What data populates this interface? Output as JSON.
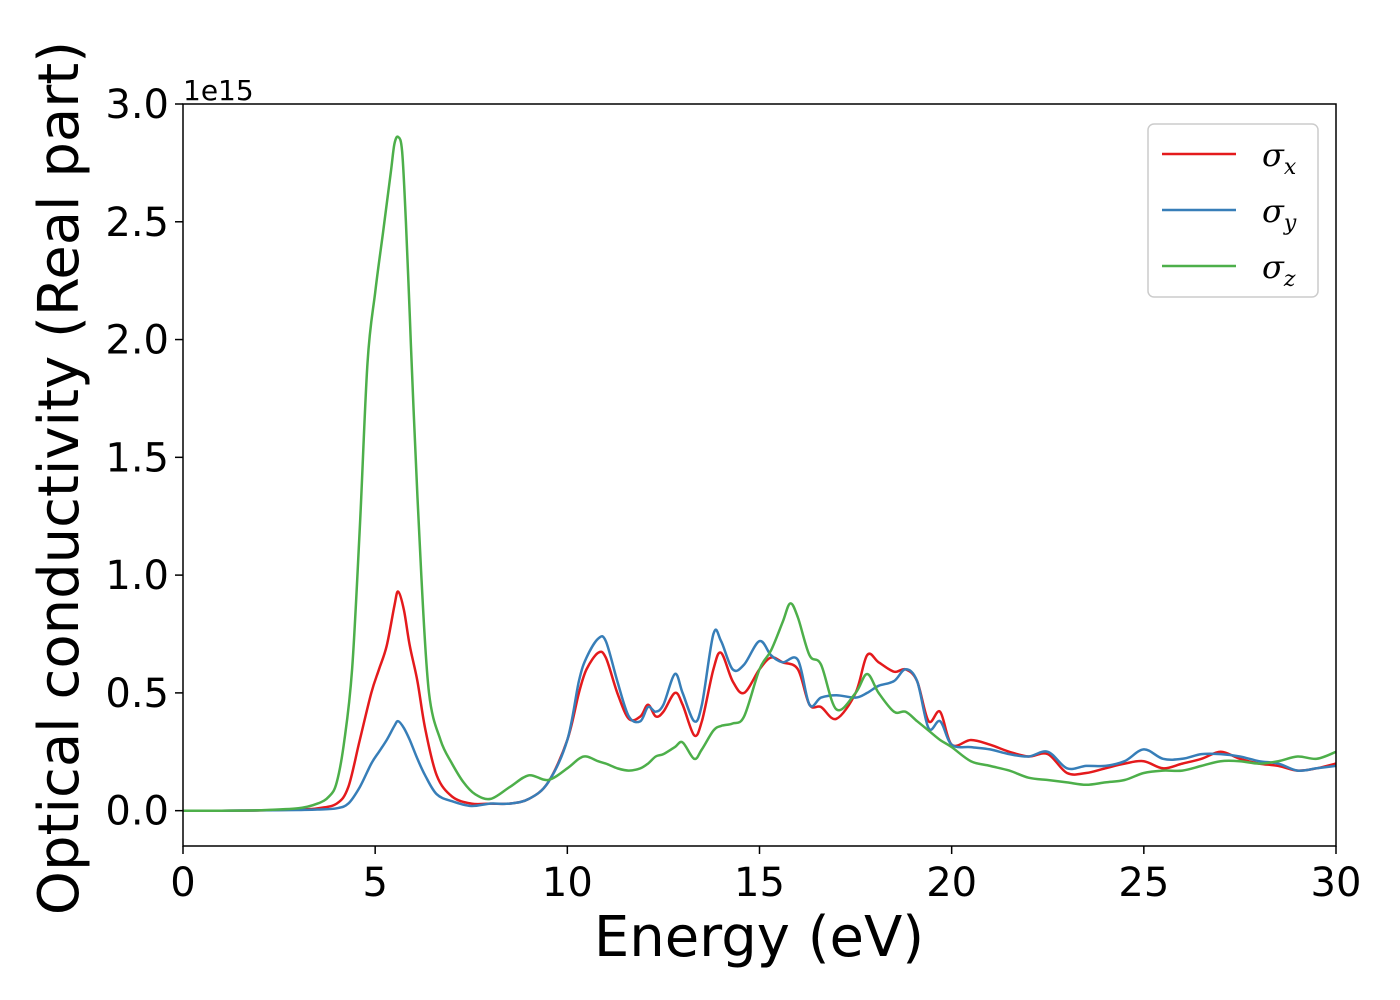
{
  "chart_data": {
    "type": "line",
    "xlabel": "Energy (eV)",
    "ylabel": "Optical conductivity (Real part)",
    "y_offset_text": "1e15",
    "xlim": [
      0,
      30
    ],
    "ylim": [
      -0.15,
      3.0
    ],
    "xticks": [
      0,
      5,
      10,
      15,
      20,
      25,
      30
    ],
    "xtick_labels": [
      "0",
      "5",
      "10",
      "15",
      "20",
      "25",
      "30"
    ],
    "yticks": [
      0.0,
      0.5,
      1.0,
      1.5,
      2.0,
      2.5,
      3.0
    ],
    "ytick_labels": [
      "0.0",
      "0.5",
      "1.0",
      "1.5",
      "2.0",
      "2.5",
      "3.0"
    ],
    "grid": false,
    "legend_position": "top-right",
    "series": [
      {
        "name": "σx",
        "symbol": "σ",
        "subscript": "x",
        "color": "#e41a1c",
        "x": [
          0,
          1,
          2,
          3,
          3.5,
          4,
          4.3,
          4.6,
          4.9,
          5.1,
          5.3,
          5.5,
          5.6,
          5.75,
          5.9,
          6.1,
          6.3,
          6.6,
          7,
          7.5,
          8,
          8.5,
          9,
          9.5,
          10,
          10.3,
          10.5,
          10.8,
          11,
          11.3,
          11.6,
          11.9,
          12.1,
          12.3,
          12.5,
          12.8,
          13,
          13.3,
          13.5,
          13.8,
          14,
          14.3,
          14.6,
          15,
          15.3,
          15.6,
          16,
          16.3,
          16.6,
          17,
          17.5,
          17.8,
          18.1,
          18.5,
          18.8,
          19.1,
          19.4,
          19.7,
          20,
          20.5,
          21,
          21.5,
          22,
          22.5,
          23,
          23.5,
          24,
          24.5,
          25,
          25.5,
          26,
          26.5,
          27,
          27.5,
          28,
          28.5,
          29,
          29.5,
          30
        ],
        "y": [
          0,
          0,
          0.001,
          0.005,
          0.01,
          0.03,
          0.1,
          0.3,
          0.5,
          0.6,
          0.7,
          0.87,
          0.93,
          0.85,
          0.7,
          0.55,
          0.35,
          0.15,
          0.06,
          0.03,
          0.03,
          0.03,
          0.05,
          0.12,
          0.3,
          0.5,
          0.6,
          0.67,
          0.65,
          0.5,
          0.39,
          0.4,
          0.45,
          0.4,
          0.42,
          0.5,
          0.45,
          0.32,
          0.38,
          0.6,
          0.67,
          0.55,
          0.5,
          0.6,
          0.65,
          0.63,
          0.6,
          0.45,
          0.44,
          0.39,
          0.5,
          0.66,
          0.63,
          0.59,
          0.6,
          0.55,
          0.38,
          0.42,
          0.28,
          0.3,
          0.28,
          0.25,
          0.23,
          0.24,
          0.16,
          0.16,
          0.18,
          0.2,
          0.21,
          0.18,
          0.2,
          0.22,
          0.25,
          0.22,
          0.2,
          0.19,
          0.17,
          0.18,
          0.2
        ]
      },
      {
        "name": "σy",
        "symbol": "σ",
        "subscript": "y",
        "color": "#377eb8",
        "x": [
          0,
          1,
          2,
          3,
          3.5,
          4,
          4.3,
          4.6,
          4.9,
          5.1,
          5.3,
          5.5,
          5.6,
          5.75,
          5.9,
          6.1,
          6.3,
          6.6,
          7,
          7.5,
          8,
          8.5,
          9,
          9.5,
          10,
          10.3,
          10.5,
          10.8,
          11,
          11.3,
          11.6,
          11.9,
          12.1,
          12.3,
          12.5,
          12.8,
          13,
          13.3,
          13.5,
          13.8,
          14,
          14.3,
          14.6,
          15,
          15.3,
          15.6,
          16,
          16.3,
          16.6,
          17,
          17.5,
          17.8,
          18.1,
          18.5,
          18.8,
          19.1,
          19.4,
          19.7,
          20,
          20.5,
          21,
          21.5,
          22,
          22.5,
          23,
          23.5,
          24,
          24.5,
          25,
          25.5,
          26,
          26.5,
          27,
          27.5,
          28,
          28.5,
          29,
          29.5,
          30
        ],
        "y": [
          0,
          0,
          0.001,
          0.003,
          0.005,
          0.01,
          0.03,
          0.1,
          0.2,
          0.25,
          0.3,
          0.36,
          0.38,
          0.35,
          0.3,
          0.22,
          0.15,
          0.07,
          0.04,
          0.02,
          0.03,
          0.03,
          0.05,
          0.12,
          0.3,
          0.55,
          0.65,
          0.73,
          0.72,
          0.55,
          0.4,
          0.38,
          0.44,
          0.42,
          0.45,
          0.58,
          0.5,
          0.38,
          0.45,
          0.75,
          0.72,
          0.6,
          0.62,
          0.72,
          0.66,
          0.63,
          0.64,
          0.45,
          0.48,
          0.49,
          0.48,
          0.5,
          0.53,
          0.55,
          0.6,
          0.55,
          0.35,
          0.38,
          0.28,
          0.27,
          0.26,
          0.24,
          0.23,
          0.25,
          0.18,
          0.19,
          0.19,
          0.21,
          0.26,
          0.22,
          0.22,
          0.24,
          0.24,
          0.23,
          0.21,
          0.2,
          0.17,
          0.18,
          0.19
        ]
      },
      {
        "name": "σz",
        "symbol": "σ",
        "subscript": "z",
        "color": "#4daf4a",
        "x": [
          0,
          1,
          2,
          3,
          3.5,
          3.8,
          4,
          4.2,
          4.4,
          4.6,
          4.8,
          5,
          5.2,
          5.4,
          5.5,
          5.6,
          5.7,
          5.8,
          5.9,
          6,
          6.2,
          6.4,
          6.7,
          7,
          7.3,
          7.6,
          8,
          8.5,
          9,
          9.5,
          10,
          10.3,
          10.5,
          10.8,
          11,
          11.3,
          11.6,
          11.9,
          12.1,
          12.3,
          12.5,
          12.8,
          13,
          13.3,
          13.5,
          13.8,
          14,
          14.3,
          14.6,
          15,
          15.3,
          15.6,
          15.8,
          16,
          16.3,
          16.6,
          17,
          17.5,
          17.8,
          18.1,
          18.5,
          18.8,
          19.1,
          19.4,
          19.7,
          20,
          20.5,
          21,
          21.5,
          22,
          22.5,
          23,
          23.5,
          24,
          24.5,
          25,
          25.5,
          26,
          26.5,
          27,
          27.5,
          28,
          28.5,
          29,
          29.5,
          30
        ],
        "y": [
          0,
          0,
          0.002,
          0.01,
          0.03,
          0.06,
          0.12,
          0.3,
          0.6,
          1.2,
          1.9,
          2.2,
          2.45,
          2.7,
          2.83,
          2.86,
          2.8,
          2.5,
          2.1,
          1.7,
          1.0,
          0.5,
          0.3,
          0.2,
          0.12,
          0.07,
          0.05,
          0.1,
          0.15,
          0.13,
          0.18,
          0.22,
          0.23,
          0.21,
          0.2,
          0.18,
          0.17,
          0.18,
          0.2,
          0.23,
          0.24,
          0.27,
          0.29,
          0.22,
          0.26,
          0.34,
          0.36,
          0.37,
          0.4,
          0.6,
          0.68,
          0.8,
          0.88,
          0.82,
          0.66,
          0.62,
          0.43,
          0.5,
          0.58,
          0.5,
          0.42,
          0.42,
          0.38,
          0.34,
          0.3,
          0.27,
          0.21,
          0.19,
          0.17,
          0.14,
          0.13,
          0.12,
          0.11,
          0.12,
          0.13,
          0.16,
          0.17,
          0.17,
          0.19,
          0.21,
          0.21,
          0.2,
          0.21,
          0.23,
          0.22,
          0.25
        ]
      }
    ]
  }
}
